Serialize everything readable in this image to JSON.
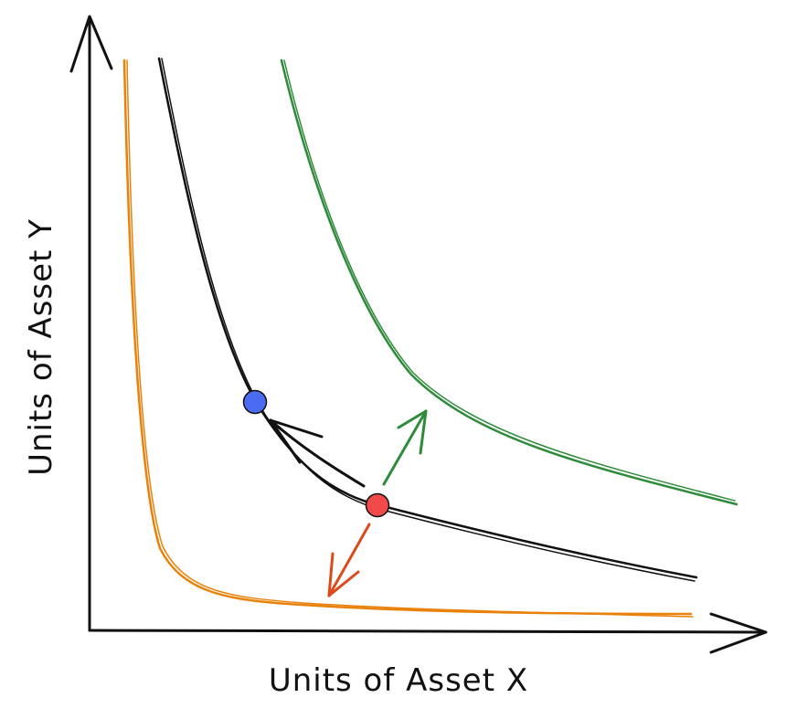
{
  "diagram": {
    "x_axis_label": "Units of Asset X",
    "y_axis_label": "Units of Asset Y",
    "colors": {
      "axis": "#111111",
      "orange_curve": "#e8820c",
      "black_curve": "#111111",
      "green_curve": "#2e8b3a",
      "blue_point": "#4a6cf0",
      "red_point": "#f04a4a",
      "black_arrow": "#111111",
      "green_arrow": "#2e8b3a",
      "red_arrow": "#dd4a1a"
    }
  }
}
